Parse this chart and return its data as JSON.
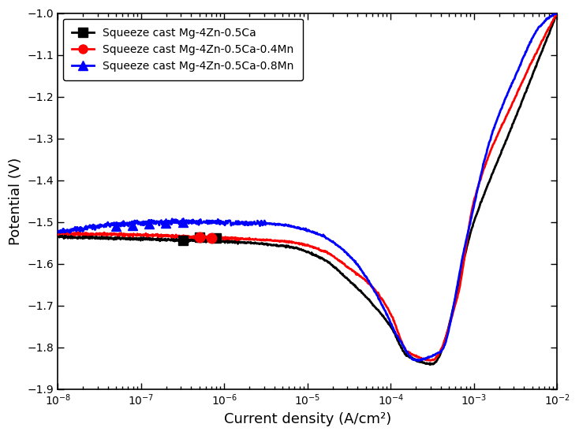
{
  "title": "",
  "xlabel": "Current density (A/cm²)",
  "ylabel": "Potential (V)",
  "xlim_log": [
    -8,
    -2
  ],
  "ylim": [
    -1.9,
    -1.0
  ],
  "yticks": [
    -1.9,
    -1.8,
    -1.7,
    -1.6,
    -1.5,
    -1.4,
    -1.3,
    -1.2,
    -1.1,
    -1.0
  ],
  "legend_labels": [
    "Squeeze cast Mg-4Zn-0.5Ca",
    "Squeeze cast Mg-4Zn-0.5Ca-0.4Mn",
    "Squeeze cast Mg-4Zn-0.5Ca-0.8Mn"
  ],
  "colors": [
    "black",
    "red",
    "blue"
  ],
  "markers": [
    "s",
    "o",
    "^"
  ],
  "background": "#ffffff"
}
